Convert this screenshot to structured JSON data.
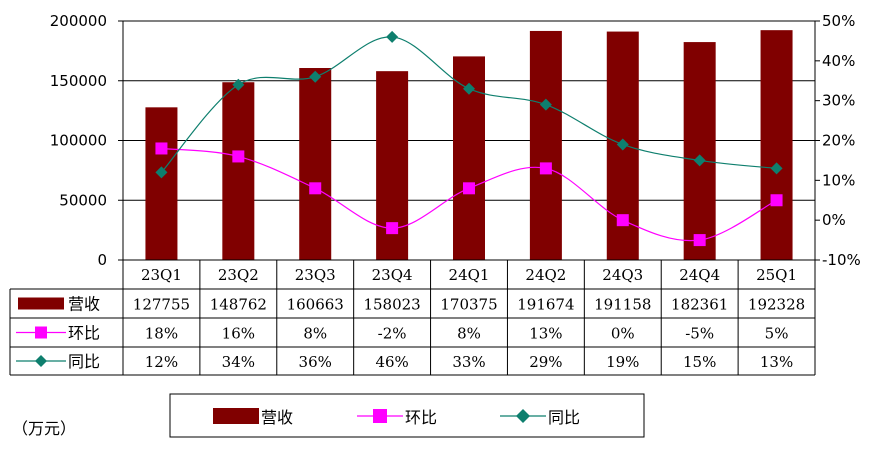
{
  "chart_data": {
    "type": "bar",
    "categories": [
      "23Q1",
      "23Q2",
      "23Q3",
      "23Q4",
      "24Q1",
      "24Q2",
      "24Q3",
      "24Q4",
      "25Q1"
    ],
    "series": [
      {
        "name": "营收",
        "type": "bar",
        "axis": "left",
        "values": [
          127755,
          148762,
          160663,
          158023,
          170375,
          191674,
          191158,
          182361,
          192328
        ],
        "labels": [
          "127755",
          "148762",
          "160663",
          "158023",
          "170375",
          "191674",
          "191158",
          "182361",
          "192328"
        ],
        "color": "#800000"
      },
      {
        "name": "环比",
        "type": "line",
        "axis": "right",
        "marker": "square",
        "values": [
          18,
          16,
          8,
          -2,
          8,
          13,
          0,
          -5,
          5
        ],
        "labels": [
          "18%",
          "16%",
          "8%",
          "-2%",
          "8%",
          "13%",
          "0%",
          "-5%",
          "5%"
        ],
        "color": "#ff00ff"
      },
      {
        "name": "同比",
        "type": "line",
        "axis": "right",
        "marker": "diamond",
        "values": [
          12,
          34,
          36,
          46,
          33,
          29,
          19,
          15,
          13
        ],
        "labels": [
          "12%",
          "34%",
          "36%",
          "46%",
          "33%",
          "29%",
          "19%",
          "15%",
          "13%"
        ],
        "color": "#0e7f6e"
      }
    ],
    "y_left": {
      "min": 0,
      "max": 200000,
      "step": 50000,
      "ticks": [
        "0",
        "50000",
        "100000",
        "150000",
        "200000"
      ]
    },
    "y_right": {
      "min": -10,
      "max": 50,
      "step": 10,
      "ticks": [
        "-10%",
        "0%",
        "10%",
        "20%",
        "30%",
        "40%",
        "50%"
      ]
    },
    "grid": true,
    "data_table": true,
    "legend": {
      "position": "bottom"
    },
    "unit_label": "（万元）"
  }
}
